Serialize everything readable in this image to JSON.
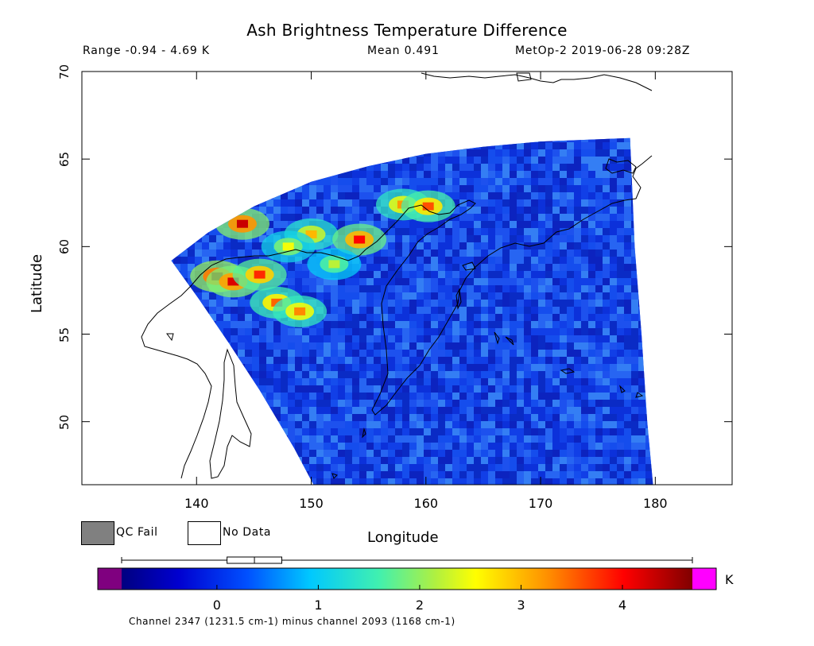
{
  "title": "Ash Brightness Temperature Difference",
  "header": {
    "range": "Range -0.94 - 4.69 K",
    "mean": "Mean 0.491",
    "satellite_time": "MetOp-2 2019-06-28 09:28Z"
  },
  "axes": {
    "ylabel": "Latitude",
    "xlabel": "Longitude",
    "lat_ticks": [
      "70",
      "65",
      "60",
      "55",
      "50"
    ],
    "lon_ticks": [
      "140",
      "150",
      "160",
      "170",
      "180"
    ],
    "lat_range": [
      46.4,
      70
    ],
    "lon_range": [
      130,
      186.7
    ]
  },
  "legend": {
    "qc_fail": "QC Fail",
    "no_data": "No Data",
    "qc_fail_color": "#808080",
    "no_data_color": "#ffffff"
  },
  "colorbar": {
    "unit": "K",
    "ticks": [
      "0",
      "1",
      "2",
      "3",
      "4"
    ],
    "tick_values": [
      0,
      1,
      2,
      3,
      4
    ],
    "min": -0.94,
    "max": 4.69,
    "underflow_color": "#7f007f",
    "overflow_color": "#ff00ff",
    "box_whisker": {
      "whisker_min": -0.94,
      "q1": 0.1,
      "median": 0.37,
      "q3": 0.64,
      "whisker_max": 4.69
    }
  },
  "footer": "Channel 2347 (1231.5 cm-1) minus channel 2093 (1168 cm-1)",
  "map_data": {
    "swath_edge_left": [
      [
        137.8,
        59.2
      ],
      [
        140.2,
        57.0
      ],
      [
        142.8,
        54.5
      ],
      [
        145.5,
        51.8
      ],
      [
        148.5,
        48.5
      ],
      [
        150.2,
        46.4
      ]
    ],
    "swath_edge_top": [
      [
        137.8,
        59.2
      ],
      [
        141.0,
        60.8
      ],
      [
        145.0,
        62.3
      ],
      [
        150.0,
        63.7
      ],
      [
        155.0,
        64.6
      ],
      [
        160.0,
        65.3
      ],
      [
        165.0,
        65.7
      ],
      [
        170.0,
        66.0
      ],
      [
        174.0,
        66.1
      ],
      [
        177.8,
        66.2
      ]
    ],
    "swath_edge_right": [
      [
        177.8,
        66.2
      ],
      [
        178.2,
        60.0
      ],
      [
        178.8,
        55.0
      ],
      [
        179.3,
        50.0
      ],
      [
        179.8,
        46.4
      ]
    ],
    "ash_hotspots": [
      {
        "lon": 141.8,
        "lat": 58.3,
        "value": 4.5
      },
      {
        "lon": 143.2,
        "lat": 58.0,
        "value": 4.2
      },
      {
        "lon": 144.0,
        "lat": 61.3,
        "value": 4.3
      },
      {
        "lon": 145.5,
        "lat": 58.4,
        "value": 3.8
      },
      {
        "lon": 147.0,
        "lat": 56.8,
        "value": 3.5
      },
      {
        "lon": 149.0,
        "lat": 56.3,
        "value": 3.3
      },
      {
        "lon": 150.0,
        "lat": 60.7,
        "value": 3.0
      },
      {
        "lon": 154.2,
        "lat": 60.4,
        "value": 4.0
      },
      {
        "lon": 158.0,
        "lat": 62.4,
        "value": 3.2
      },
      {
        "lon": 160.2,
        "lat": 62.3,
        "value": 3.6
      },
      {
        "lon": 152.0,
        "lat": 59.0,
        "value": 2.2
      },
      {
        "lon": 148.0,
        "lat": 60.0,
        "value": 2.5
      }
    ]
  }
}
